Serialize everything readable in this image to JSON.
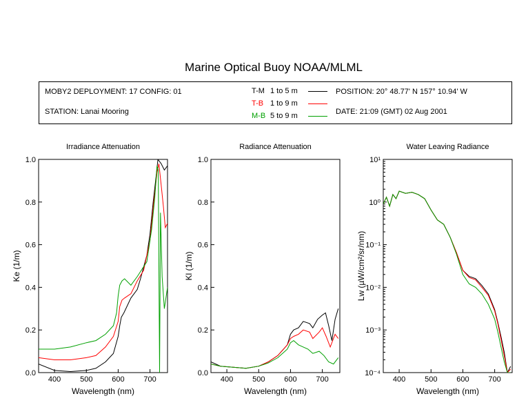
{
  "title": "Marine Optical Buoy NOAA/MLML",
  "info": {
    "deployment": "MOBY2 DEPLOYMENT: 17 CONFIG: 01",
    "station": "STATION: Lanai Mooring",
    "position": "POSITION: 20° 48.77' N   157° 10.94' W",
    "date": "DATE: 21:09 (GMT) 02 Aug 2001"
  },
  "legend": [
    {
      "code": "T-M",
      "range": "1 to 5  m",
      "color": "#000000"
    },
    {
      "code": "T-B",
      "range": "1 to 9  m",
      "color": "#ff0000"
    },
    {
      "code": "M-B",
      "range": "5 to 9  m",
      "color": "#00a000"
    }
  ],
  "chart_data": [
    {
      "type": "line",
      "title": "Irradiance Attenuation",
      "xlabel": "Wavelength (nm)",
      "ylabel": "Ke  (1/m)",
      "xlim": [
        350,
        755
      ],
      "ylim": [
        0,
        1.0
      ],
      "xticks": [
        "400",
        "500",
        "600",
        "700"
      ],
      "yticks": [
        "0.0",
        "0.2",
        "0.4",
        "0.6",
        "0.8",
        "1.0"
      ],
      "series": [
        {
          "name": "T-M",
          "color": "#000000",
          "points": [
            [
              350,
              0.04
            ],
            [
              400,
              0.01
            ],
            [
              450,
              0.005
            ],
            [
              500,
              0.01
            ],
            [
              530,
              0.02
            ],
            [
              560,
              0.05
            ],
            [
              585,
              0.09
            ],
            [
              600,
              0.17
            ],
            [
              605,
              0.22
            ],
            [
              610,
              0.26
            ],
            [
              618,
              0.28
            ],
            [
              640,
              0.35
            ],
            [
              660,
              0.39
            ],
            [
              670,
              0.44
            ],
            [
              690,
              0.55
            ],
            [
              700,
              0.65
            ],
            [
              710,
              0.8
            ],
            [
              720,
              0.93
            ],
            [
              725,
              1.0
            ],
            [
              735,
              0.98
            ],
            [
              745,
              0.95
            ],
            [
              755,
              0.97
            ]
          ]
        },
        {
          "name": "T-B",
          "color": "#ff0000",
          "points": [
            [
              350,
              0.07
            ],
            [
              400,
              0.06
            ],
            [
              450,
              0.06
            ],
            [
              500,
              0.07
            ],
            [
              530,
              0.08
            ],
            [
              560,
              0.12
            ],
            [
              585,
              0.17
            ],
            [
              600,
              0.24
            ],
            [
              605,
              0.31
            ],
            [
              612,
              0.34
            ],
            [
              620,
              0.35
            ],
            [
              640,
              0.37
            ],
            [
              660,
              0.43
            ],
            [
              680,
              0.48
            ],
            [
              700,
              0.62
            ],
            [
              712,
              0.8
            ],
            [
              722,
              0.94
            ],
            [
              728,
              0.98
            ],
            [
              735,
              0.88
            ],
            [
              742,
              0.78
            ],
            [
              748,
              0.68
            ],
            [
              755,
              0.7
            ]
          ]
        },
        {
          "name": "M-B",
          "color": "#00a000",
          "points": [
            [
              350,
              0.11
            ],
            [
              400,
              0.11
            ],
            [
              450,
              0.12
            ],
            [
              500,
              0.14
            ],
            [
              530,
              0.15
            ],
            [
              560,
              0.18
            ],
            [
              585,
              0.22
            ],
            [
              595,
              0.28
            ],
            [
              600,
              0.36
            ],
            [
              605,
              0.41
            ],
            [
              612,
              0.43
            ],
            [
              620,
              0.44
            ],
            [
              640,
              0.41
            ],
            [
              660,
              0.45
            ],
            [
              690,
              0.52
            ],
            [
              705,
              0.67
            ],
            [
              715,
              0.82
            ],
            [
              722,
              0.97
            ],
            [
              726,
              0.95
            ],
            [
              730,
              0.0
            ],
            [
              733,
              0.75
            ],
            [
              738,
              0.45
            ],
            [
              745,
              0.3
            ],
            [
              755,
              0.4
            ]
          ]
        }
      ]
    },
    {
      "type": "line",
      "title": "Radiance Attenuation",
      "xlabel": "Wavelength (nm)",
      "ylabel": "Kl  (1/m)",
      "xlim": [
        350,
        755
      ],
      "ylim": [
        0,
        1.0
      ],
      "xticks": [
        "400",
        "500",
        "600",
        "700"
      ],
      "yticks": [
        "0.0",
        "0.2",
        "0.4",
        "0.6",
        "0.8",
        "1.0"
      ],
      "series": [
        {
          "name": "T-M",
          "color": "#000000",
          "points": [
            [
              350,
              0.05
            ],
            [
              380,
              0.03
            ],
            [
              420,
              0.025
            ],
            [
              460,
              0.02
            ],
            [
              500,
              0.03
            ],
            [
              530,
              0.05
            ],
            [
              560,
              0.08
            ],
            [
              590,
              0.13
            ],
            [
              600,
              0.18
            ],
            [
              610,
              0.2
            ],
            [
              625,
              0.21
            ],
            [
              640,
              0.24
            ],
            [
              660,
              0.23
            ],
            [
              670,
              0.21
            ],
            [
              685,
              0.25
            ],
            [
              700,
              0.27
            ],
            [
              710,
              0.28
            ],
            [
              720,
              0.22
            ],
            [
              730,
              0.15
            ],
            [
              740,
              0.25
            ],
            [
              750,
              0.3
            ]
          ]
        },
        {
          "name": "T-B",
          "color": "#ff0000",
          "points": [
            [
              350,
              0.04
            ],
            [
              380,
              0.03
            ],
            [
              420,
              0.025
            ],
            [
              460,
              0.02
            ],
            [
              500,
              0.03
            ],
            [
              530,
              0.05
            ],
            [
              560,
              0.08
            ],
            [
              590,
              0.13
            ],
            [
              600,
              0.16
            ],
            [
              610,
              0.17
            ],
            [
              625,
              0.18
            ],
            [
              640,
              0.2
            ],
            [
              660,
              0.19
            ],
            [
              670,
              0.16
            ],
            [
              690,
              0.19
            ],
            [
              700,
              0.21
            ],
            [
              712,
              0.17
            ],
            [
              725,
              0.12
            ],
            [
              740,
              0.18
            ],
            [
              750,
              0.16
            ]
          ]
        },
        {
          "name": "M-B",
          "color": "#00a000",
          "points": [
            [
              350,
              0.04
            ],
            [
              380,
              0.03
            ],
            [
              420,
              0.025
            ],
            [
              460,
              0.02
            ],
            [
              500,
              0.03
            ],
            [
              530,
              0.045
            ],
            [
              560,
              0.07
            ],
            [
              590,
              0.11
            ],
            [
              600,
              0.14
            ],
            [
              610,
              0.15
            ],
            [
              625,
              0.13
            ],
            [
              640,
              0.12
            ],
            [
              655,
              0.11
            ],
            [
              670,
              0.09
            ],
            [
              690,
              0.1
            ],
            [
              705,
              0.08
            ],
            [
              720,
              0.05
            ],
            [
              735,
              0.04
            ],
            [
              750,
              0.07
            ]
          ]
        }
      ]
    },
    {
      "type": "line",
      "title": "Water Leaving Radiance",
      "xlabel": "Wavelength (nm)",
      "ylabel": "Lw  (µW/cm²/sr/nm)",
      "xlim": [
        350,
        755
      ],
      "ylim": [
        0.0001,
        10
      ],
      "yscale": "log",
      "xticks": [
        "400",
        "500",
        "600",
        "700"
      ],
      "yticks": [
        "10⁻⁴",
        "10⁻³",
        "10⁻²",
        "10⁻¹",
        "10⁰",
        "10¹"
      ],
      "series": [
        {
          "name": "T-M",
          "color": "#000000",
          "points": [
            [
              350,
              0.9
            ],
            [
              360,
              1.3
            ],
            [
              370,
              0.8
            ],
            [
              380,
              1.5
            ],
            [
              390,
              1.2
            ],
            [
              400,
              1.8
            ],
            [
              420,
              1.6
            ],
            [
              440,
              1.7
            ],
            [
              460,
              1.5
            ],
            [
              480,
              1.2
            ],
            [
              500,
              0.65
            ],
            [
              520,
              0.38
            ],
            [
              540,
              0.3
            ],
            [
              560,
              0.15
            ],
            [
              580,
              0.065
            ],
            [
              600,
              0.025
            ],
            [
              620,
              0.018
            ],
            [
              640,
              0.016
            ],
            [
              660,
              0.011
            ],
            [
              680,
              0.007
            ],
            [
              700,
              0.003
            ],
            [
              710,
              0.0015
            ],
            [
              720,
              0.0007
            ],
            [
              730,
              0.0003
            ],
            [
              740,
              0.0001
            ],
            [
              750,
              0.00014
            ]
          ]
        },
        {
          "name": "T-B",
          "color": "#ff0000",
          "points": [
            [
              350,
              0.9
            ],
            [
              360,
              1.3
            ],
            [
              370,
              0.8
            ],
            [
              380,
              1.5
            ],
            [
              390,
              1.2
            ],
            [
              400,
              1.8
            ],
            [
              420,
              1.6
            ],
            [
              440,
              1.7
            ],
            [
              460,
              1.5
            ],
            [
              480,
              1.2
            ],
            [
              500,
              0.65
            ],
            [
              520,
              0.38
            ],
            [
              540,
              0.3
            ],
            [
              560,
              0.15
            ],
            [
              580,
              0.065
            ],
            [
              600,
              0.025
            ],
            [
              620,
              0.017
            ],
            [
              640,
              0.015
            ],
            [
              660,
              0.01
            ],
            [
              680,
              0.0065
            ],
            [
              700,
              0.0028
            ],
            [
              710,
              0.0014
            ],
            [
              720,
              0.0006
            ],
            [
              730,
              0.00025
            ],
            [
              740,
              0.0001
            ],
            [
              750,
              0.00012
            ]
          ]
        },
        {
          "name": "M-B",
          "color": "#00a000",
          "points": [
            [
              350,
              0.9
            ],
            [
              360,
              1.3
            ],
            [
              370,
              0.8
            ],
            [
              380,
              1.5
            ],
            [
              390,
              1.2
            ],
            [
              400,
              1.8
            ],
            [
              420,
              1.6
            ],
            [
              440,
              1.7
            ],
            [
              460,
              1.5
            ],
            [
              480,
              1.2
            ],
            [
              500,
              0.65
            ],
            [
              520,
              0.38
            ],
            [
              540,
              0.3
            ],
            [
              560,
              0.15
            ],
            [
              580,
              0.06
            ],
            [
              600,
              0.02
            ],
            [
              620,
              0.012
            ],
            [
              640,
              0.01
            ],
            [
              660,
              0.007
            ],
            [
              680,
              0.004
            ],
            [
              700,
              0.0018
            ],
            [
              710,
              0.0009
            ],
            [
              720,
              0.0004
            ],
            [
              730,
              0.00018
            ],
            [
              740,
              0.0001
            ],
            [
              750,
              0.0001
            ]
          ]
        }
      ]
    }
  ]
}
